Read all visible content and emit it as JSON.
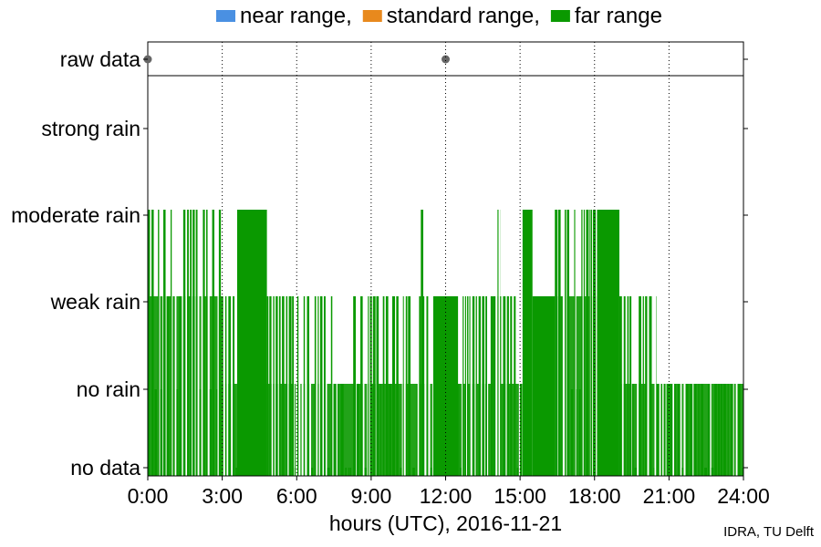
{
  "chart_data": {
    "type": "bar",
    "legend": {
      "placement": "top",
      "entries": [
        {
          "name": "near range,",
          "color": "#4a90e2"
        },
        {
          "name": "standard range,",
          "color": "#e8891d"
        },
        {
          "name": "far range",
          "color": "#0a9900"
        }
      ]
    },
    "xlabel": "hours (UTC), 2016-11-21",
    "xlim": [
      0,
      24
    ],
    "xticks": [
      {
        "value": 0,
        "label": "0:00"
      },
      {
        "value": 3,
        "label": "3:00"
      },
      {
        "value": 6,
        "label": "6:00"
      },
      {
        "value": 9,
        "label": "9:00"
      },
      {
        "value": 12,
        "label": "12:00"
      },
      {
        "value": 15,
        "label": "15:00"
      },
      {
        "value": 18,
        "label": "18:00"
      },
      {
        "value": 21,
        "label": "21:00"
      },
      {
        "value": 24,
        "label": "24:00"
      }
    ],
    "ylevels": [
      "no data",
      "no rain",
      "weak rain",
      "moderate rain",
      "strong rain"
    ],
    "raw_data_label": "raw data",
    "raw_data_points": [
      0,
      12
    ],
    "grid": "vertical dotted at x ticks",
    "series": [
      {
        "name": "far range",
        "color": "#0a9900",
        "intervals": [
          {
            "start": 0.0,
            "end": 2.95,
            "level": 3,
            "pattern": "intermittent"
          },
          {
            "start": 2.95,
            "end": 3.6,
            "level": 2,
            "pattern": "intermittent"
          },
          {
            "start": 3.6,
            "end": 4.8,
            "level": 3,
            "pattern": "solid"
          },
          {
            "start": 4.8,
            "end": 5.05,
            "level": 2,
            "pattern": "intermittent"
          },
          {
            "start": 5.05,
            "end": 11.0,
            "level": 2,
            "pattern": "intermittent"
          },
          {
            "start": 11.0,
            "end": 11.1,
            "level": 3,
            "pattern": "solid"
          },
          {
            "start": 11.1,
            "end": 11.5,
            "level": 2,
            "pattern": "intermittent"
          },
          {
            "start": 11.5,
            "end": 12.5,
            "level": 2,
            "pattern": "solid"
          },
          {
            "start": 12.5,
            "end": 13.9,
            "level": 2,
            "pattern": "intermittent"
          },
          {
            "start": 13.9,
            "end": 14.2,
            "level": 3,
            "pattern": "intermittent"
          },
          {
            "start": 14.2,
            "end": 15.0,
            "level": 2,
            "pattern": "intermittent"
          },
          {
            "start": 15.0,
            "end": 15.1,
            "level": 2,
            "pattern": "intermittent"
          },
          {
            "start": 15.1,
            "end": 15.5,
            "level": 3,
            "pattern": "solid"
          },
          {
            "start": 15.5,
            "end": 16.4,
            "level": 2,
            "pattern": "solid"
          },
          {
            "start": 16.4,
            "end": 18.1,
            "level": 3,
            "pattern": "intermittent"
          },
          {
            "start": 18.1,
            "end": 19.0,
            "level": 3,
            "pattern": "solid"
          },
          {
            "start": 19.0,
            "end": 20.5,
            "level": 2,
            "pattern": "intermittent"
          },
          {
            "start": 20.5,
            "end": 24.0,
            "level": 1,
            "pattern": "intermittent"
          }
        ]
      }
    ]
  },
  "credit": "IDRA, TU Delft"
}
